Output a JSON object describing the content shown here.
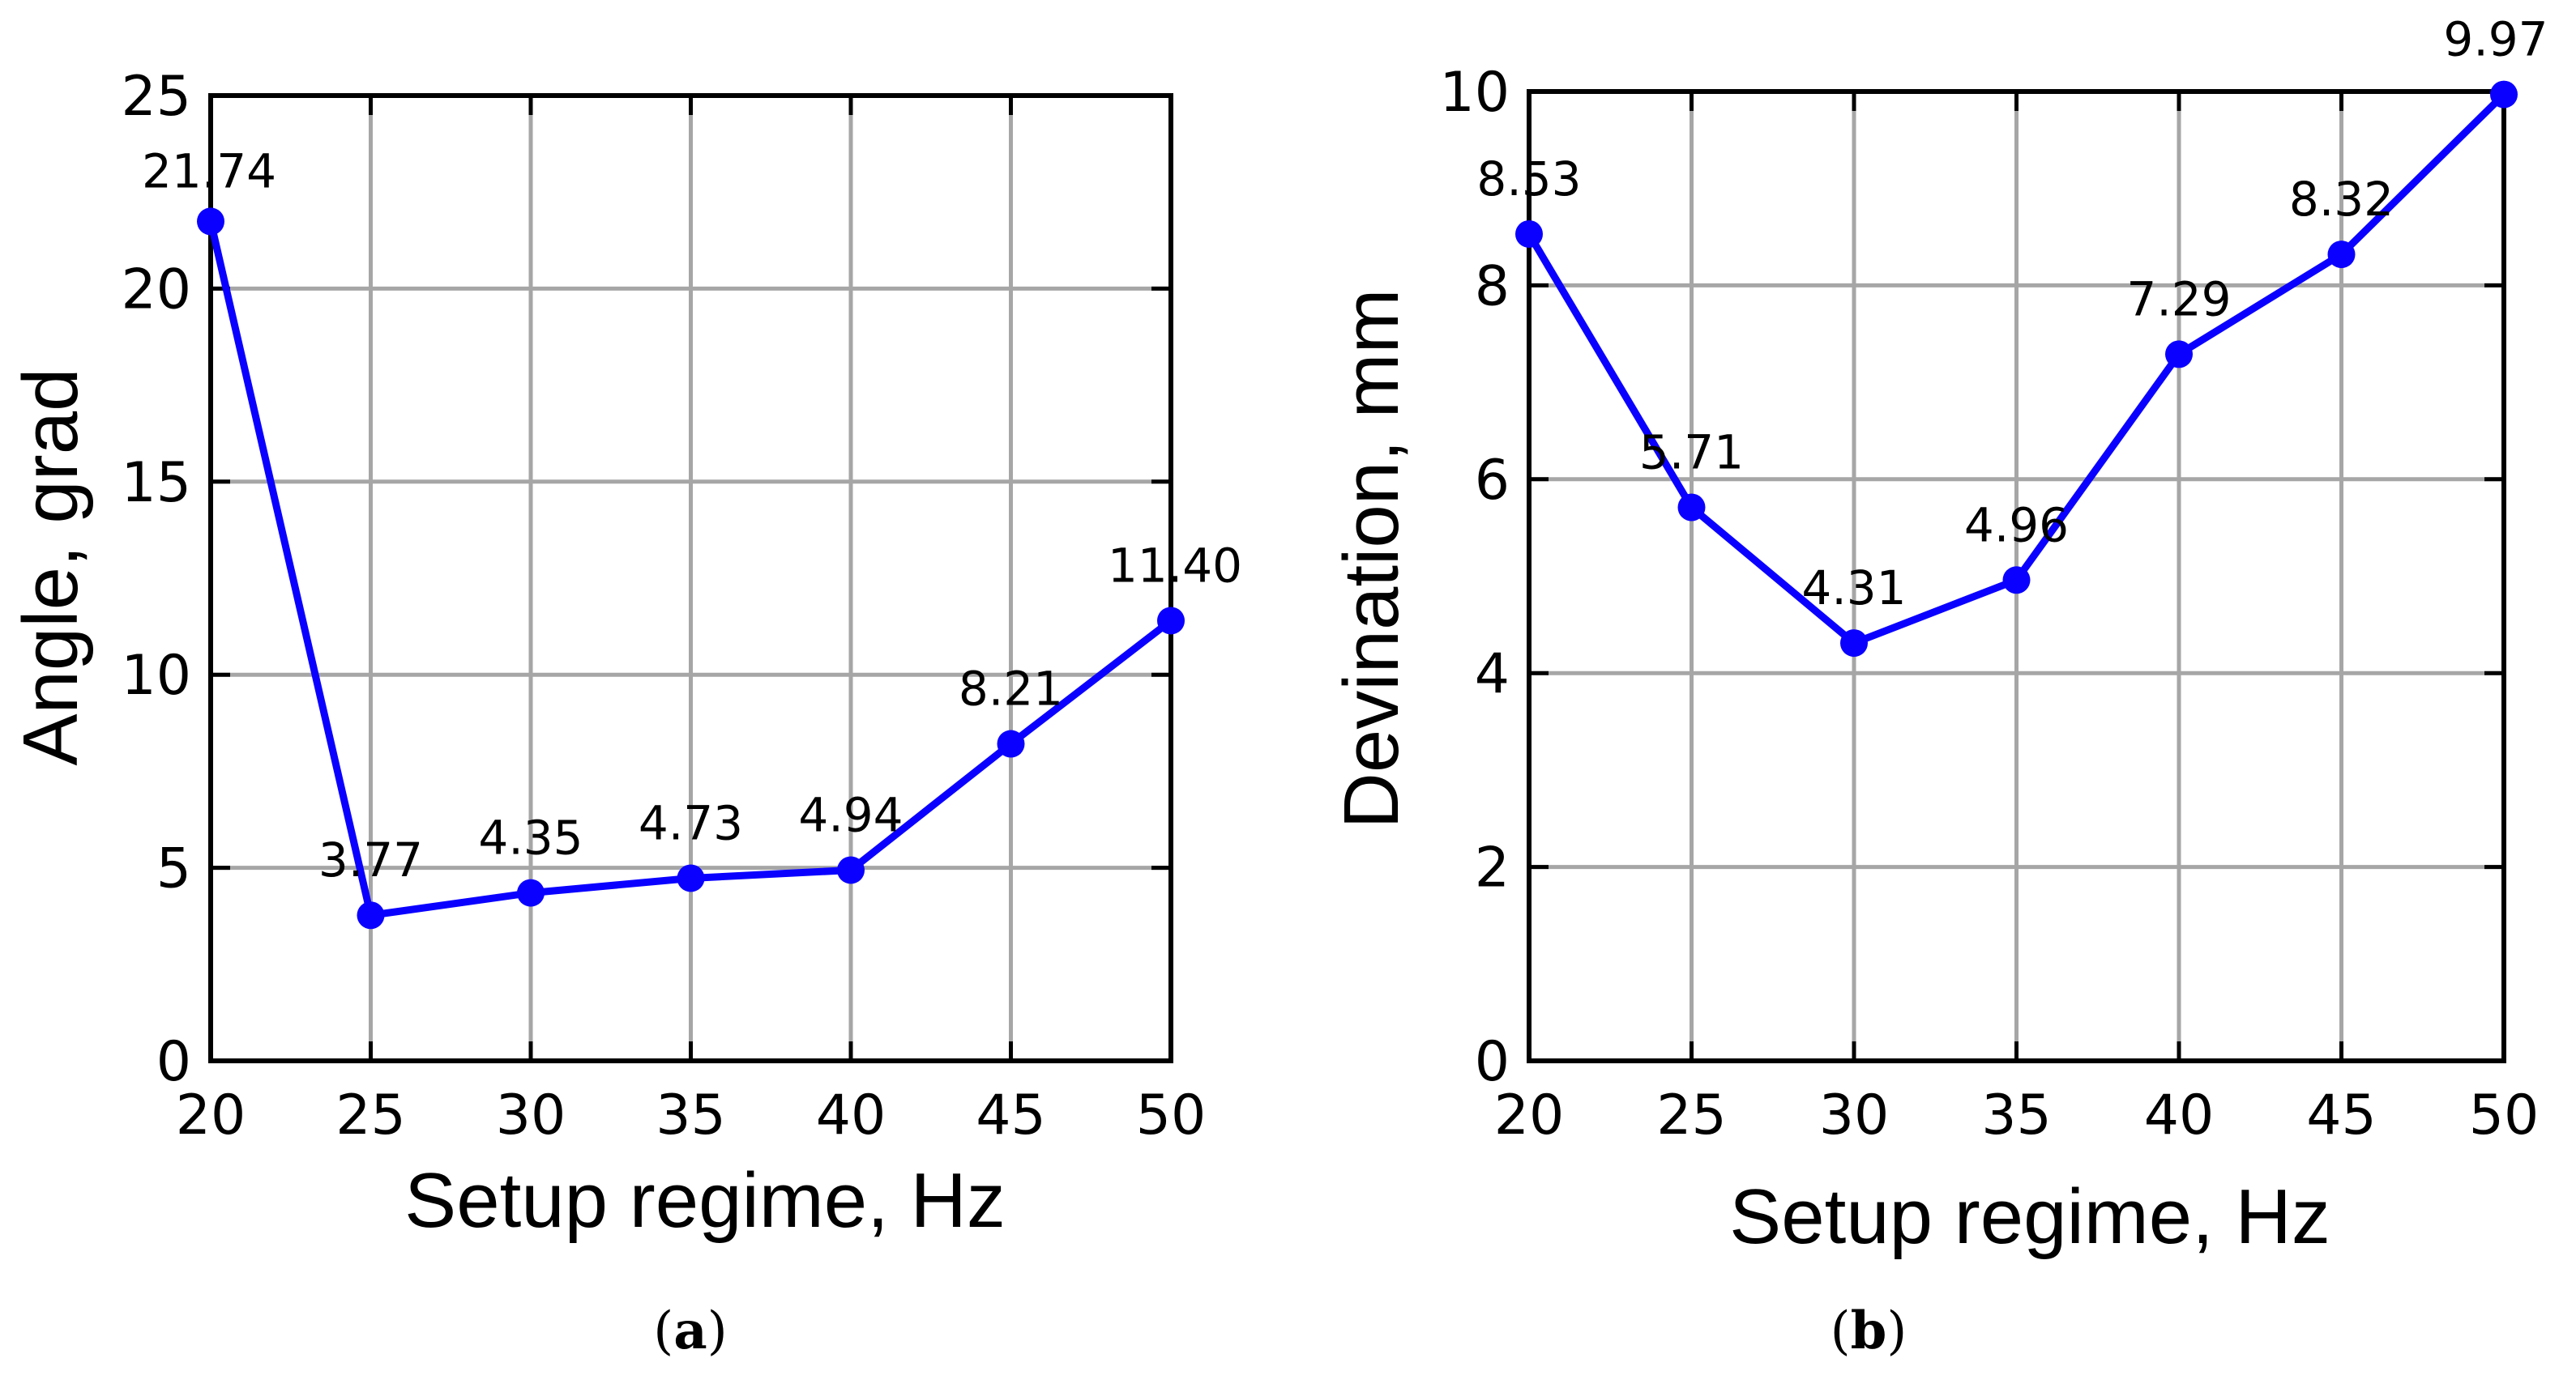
{
  "chart_data": [
    {
      "type": "line",
      "panel_label": {
        "open": "(",
        "letter": "a",
        "close": ")"
      },
      "xlabel": "Setup regime, Hz",
      "ylabel": "Angle, grad",
      "x": [
        20,
        25,
        30,
        35,
        40,
        45,
        50
      ],
      "values": [
        21.74,
        3.77,
        4.35,
        4.73,
        4.94,
        8.21,
        11.4
      ],
      "data_labels": [
        "21.74",
        "3.77",
        "4.35",
        "4.73",
        "4.94",
        "8.21",
        "11.40"
      ],
      "xticks": [
        "20",
        "25",
        "30",
        "35",
        "40",
        "45",
        "50"
      ],
      "yticks": [
        "0",
        "5",
        "10",
        "15",
        "20",
        "25"
      ],
      "xlim": [
        20,
        50
      ],
      "ylim": [
        0,
        25
      ],
      "grid": true,
      "color": "#0a00ff"
    },
    {
      "type": "line",
      "panel_label": {
        "open": "(",
        "letter": "b",
        "close": ")"
      },
      "xlabel": "Setup regime, Hz",
      "ylabel": "Devination, mm",
      "x": [
        20,
        25,
        30,
        35,
        40,
        45,
        50
      ],
      "values": [
        8.53,
        5.71,
        4.31,
        4.96,
        7.29,
        8.32,
        9.97
      ],
      "data_labels": [
        "8.53",
        "5.71",
        "4.31",
        "4.96",
        "7.29",
        "8.32",
        "9.97"
      ],
      "xticks": [
        "20",
        "25",
        "30",
        "35",
        "40",
        "45",
        "50"
      ],
      "yticks": [
        "0",
        "2",
        "4",
        "6",
        "8",
        "10"
      ],
      "xlim": [
        20,
        50
      ],
      "ylim": [
        0,
        10
      ],
      "grid": true,
      "color": "#0a00ff"
    }
  ]
}
